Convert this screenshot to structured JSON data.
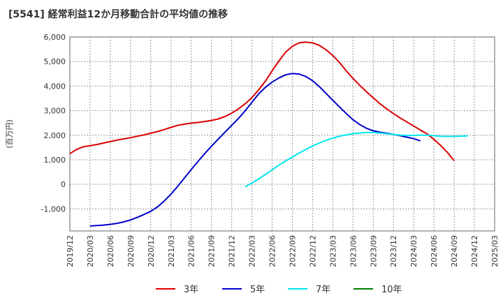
{
  "title": "[5541]  経常利益12か月移動合計の平均値の推移",
  "chart_data": {
    "type": "line",
    "title": "[5541]  経常利益12か月移動合計の平均値の推移",
    "ylabel": "(百万円)",
    "xlabel": "",
    "ylim": [
      -1900,
      6000
    ],
    "yticks": [
      -1000,
      0,
      1000,
      2000,
      3000,
      4000,
      5000,
      6000
    ],
    "ytick_labels": [
      "-1,000",
      "0",
      "1,000",
      "2,000",
      "3,000",
      "4,000",
      "5,000",
      "6,000"
    ],
    "xticks": [
      "2019/12",
      "2020/03",
      "2020/06",
      "2020/09",
      "2020/12",
      "2021/03",
      "2021/06",
      "2021/09",
      "2021/12",
      "2022/03",
      "2022/06",
      "2022/09",
      "2022/12",
      "2023/03",
      "2023/06",
      "2023/09",
      "2023/12",
      "2024/03",
      "2024/06",
      "2024/09",
      "2024/12",
      "2025/03"
    ],
    "grid": true,
    "legend_position": "bottom",
    "series": [
      {
        "name": "3年",
        "color": "#dd0000",
        "start": "2019/12",
        "values": [
          1250,
          1420,
          1530,
          1570,
          1620,
          1680,
          1740,
          1800,
          1850,
          1900,
          1960,
          2010,
          2080,
          2150,
          2230,
          2320,
          2400,
          2450,
          2490,
          2520,
          2560,
          2600,
          2660,
          2760,
          2900,
          3070,
          3280,
          3530,
          3850,
          4200,
          4620,
          5020,
          5380,
          5620,
          5760,
          5790,
          5760,
          5660,
          5480,
          5240,
          4960,
          4620,
          4310,
          4030,
          3770,
          3520,
          3280,
          3070,
          2880,
          2700,
          2540,
          2370,
          2210,
          2050,
          1830,
          1580,
          1300,
          960
        ]
      },
      {
        "name": "5年",
        "color": "#0000cc",
        "start": "2020/03",
        "values": [
          -1700,
          -1680,
          -1660,
          -1630,
          -1590,
          -1530,
          -1450,
          -1350,
          -1230,
          -1100,
          -920,
          -680,
          -400,
          -80,
          260,
          600,
          930,
          1250,
          1550,
          1840,
          2120,
          2400,
          2680,
          2990,
          3340,
          3680,
          3950,
          4160,
          4330,
          4460,
          4510,
          4490,
          4390,
          4220,
          3980,
          3700,
          3420,
          3150,
          2880,
          2630,
          2430,
          2280,
          2180,
          2120,
          2080,
          2030,
          1980,
          1920,
          1860,
          1770
        ]
      },
      {
        "name": "7年",
        "color": "#00e5ee",
        "start": "2022/02",
        "values": [
          -100,
          50,
          220,
          400,
          590,
          780,
          950,
          1110,
          1270,
          1420,
          1560,
          1680,
          1790,
          1880,
          1960,
          2010,
          2060,
          2090,
          2110,
          2110,
          2090,
          2060,
          2030,
          2000,
          1990,
          1990,
          2000,
          2000,
          1980,
          1960,
          1950,
          1950,
          1960,
          1970
        ]
      },
      {
        "name": "10年",
        "color": "#008000",
        "start": "2024/12",
        "values": []
      }
    ]
  }
}
